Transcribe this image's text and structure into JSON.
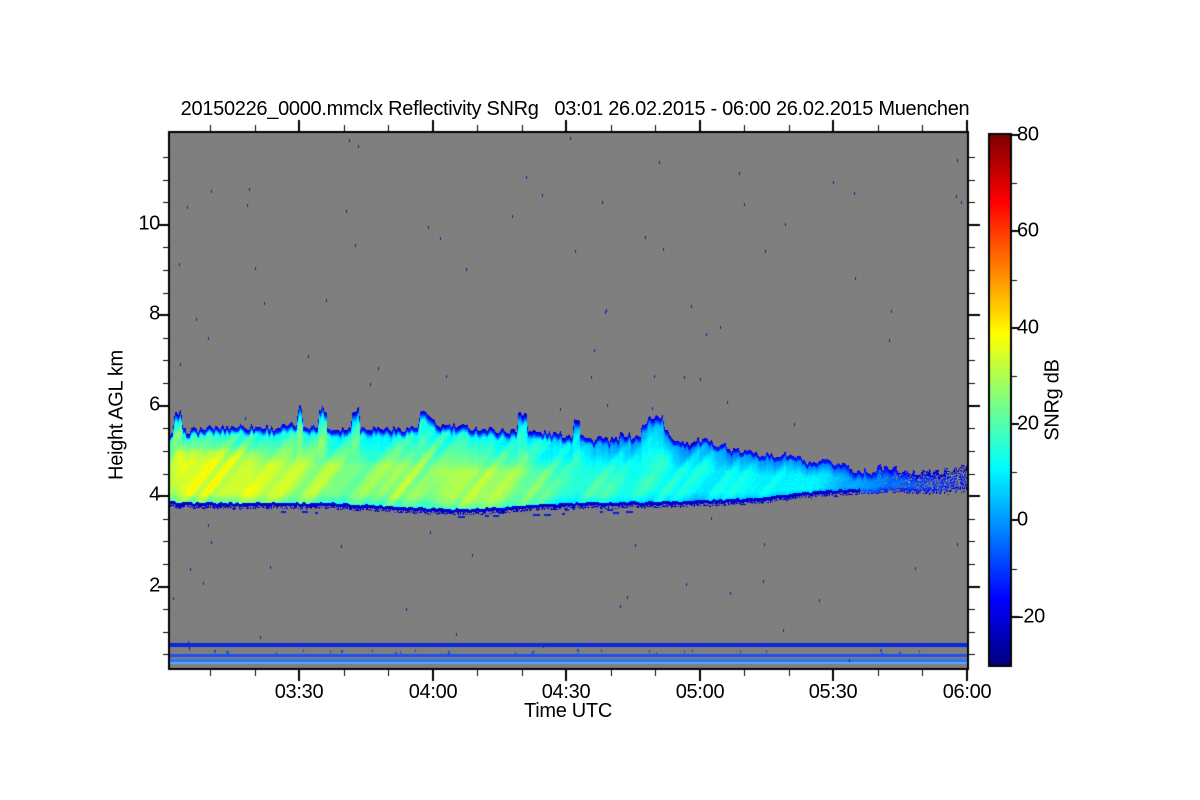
{
  "app": {
    "type": "cloud-radar-quicklook"
  },
  "chart_data": {
    "type": "heatmap",
    "title": "20150226_0000.mmclx Reflectivity SNRg   03:01 26.02.2015 - 06:00 26.02.2015 Muenchen",
    "xlabel": "Time UTC",
    "ylabel": "Height AGL km",
    "station": "Muenchen",
    "time_span": "03:01 26.02.2015 - 06:00 26.02.2015",
    "x_axis": {
      "start_hours": 3.0167,
      "end_hours": 6.0,
      "major_ticks": [
        {
          "t": 3.5,
          "label": "03:30"
        },
        {
          "t": 4.0,
          "label": "04:00"
        },
        {
          "t": 4.5,
          "label": "04:30"
        },
        {
          "t": 5.0,
          "label": "05:00"
        },
        {
          "t": 5.5,
          "label": "05:30"
        },
        {
          "t": 6.0,
          "label": "06:00"
        }
      ],
      "minor_tick_interval_hours": 0.166667
    },
    "y_axis": {
      "min_km": 0.2,
      "max_km": 12.03,
      "major_ticks": [
        {
          "h": 2,
          "label": "2"
        },
        {
          "h": 4,
          "label": "4"
        },
        {
          "h": 6,
          "label": "6"
        },
        {
          "h": 8,
          "label": "8"
        },
        {
          "h": 10,
          "label": "10"
        }
      ],
      "minor_tick_interval_km": 0.5
    },
    "colorbar": {
      "label": "SNRg dB",
      "min": -30,
      "max": 80,
      "colormap": "jet",
      "major_ticks": [
        {
          "v": 80,
          "label": "80"
        },
        {
          "v": 60,
          "label": "60"
        },
        {
          "v": 40,
          "label": "40"
        },
        {
          "v": 20,
          "label": "20"
        },
        {
          "v": 0,
          "label": "0"
        },
        {
          "v": -20,
          "label": "-20"
        }
      ],
      "minor_ticks": [
        -10,
        10,
        30,
        50,
        70
      ]
    },
    "plot_bg_color": "#7f7f7f",
    "page_bg_color": "#ffffff",
    "axis_color": "#000000",
    "noise_speckles": {
      "count": 105,
      "color": "#1a1aad"
    },
    "cloud_band": {
      "comment": "profile rows: [time_hours, cloud_top_km, cloud_base_km, core_snr_db]",
      "profile": [
        [
          3.017,
          5.35,
          3.8,
          29
        ],
        [
          3.08,
          5.45,
          3.79,
          31
        ],
        [
          3.17,
          5.5,
          3.78,
          31
        ],
        [
          3.28,
          5.55,
          3.78,
          29
        ],
        [
          3.4,
          5.5,
          3.79,
          27
        ],
        [
          3.5,
          5.58,
          3.78,
          26
        ],
        [
          3.62,
          5.48,
          3.77,
          26
        ],
        [
          3.75,
          5.52,
          3.74,
          25
        ],
        [
          3.88,
          5.48,
          3.7,
          25
        ],
        [
          4.0,
          5.58,
          3.67,
          26
        ],
        [
          4.13,
          5.52,
          3.64,
          27
        ],
        [
          4.25,
          5.45,
          3.68,
          25
        ],
        [
          4.38,
          5.42,
          3.73,
          21
        ],
        [
          4.5,
          5.35,
          3.77,
          18
        ],
        [
          4.63,
          5.22,
          3.79,
          16
        ],
        [
          4.75,
          5.28,
          3.8,
          15
        ],
        [
          4.85,
          5.35,
          3.81,
          14
        ],
        [
          5.0,
          5.12,
          3.83,
          14
        ],
        [
          5.12,
          5.02,
          3.86,
          13
        ],
        [
          5.25,
          4.92,
          3.92,
          11
        ],
        [
          5.38,
          4.72,
          4.0,
          8
        ],
        [
          5.5,
          4.62,
          4.06,
          4
        ],
        [
          5.62,
          4.55,
          4.1,
          0
        ],
        [
          5.72,
          4.5,
          4.14,
          -6
        ],
        [
          5.83,
          4.52,
          4.12,
          -11
        ],
        [
          5.92,
          4.56,
          4.08,
          -13
        ],
        [
          6.0,
          4.55,
          4.15,
          -12
        ]
      ],
      "bright_patches": [
        [
          3.017,
          3.35,
          3.95,
          5.05,
          6
        ],
        [
          3.35,
          4.0,
          3.9,
          4.75,
          3
        ],
        [
          4.0,
          4.45,
          3.75,
          4.65,
          5
        ],
        [
          4.45,
          4.85,
          3.9,
          4.45,
          2
        ],
        [
          4.37,
          4.52,
          4.95,
          5.3,
          5
        ]
      ],
      "speckle_tail_start": 5.67,
      "base_line_value": -24,
      "top_rim_value": -16
    },
    "clutter_stripes": [
      {
        "h_top": 0.753,
        "h_bottom": 0.664,
        "color": "#0a28dc"
      },
      {
        "h_top": 0.51,
        "h_bottom": 0.443,
        "color": "#1e50f0"
      },
      {
        "h_top": 0.399,
        "h_bottom": 0.333,
        "color": "#2e72f5"
      },
      {
        "h_top": 0.333,
        "h_bottom": 0.288,
        "color": "#5ea4f2"
      }
    ],
    "virga_dashes": {
      "count": 14,
      "color": "#0a1ed2"
    },
    "stripe_dashes": {
      "count": 28,
      "color": "#1e4ce8",
      "h_top": 0.62,
      "h_bottom": 0.53
    }
  }
}
